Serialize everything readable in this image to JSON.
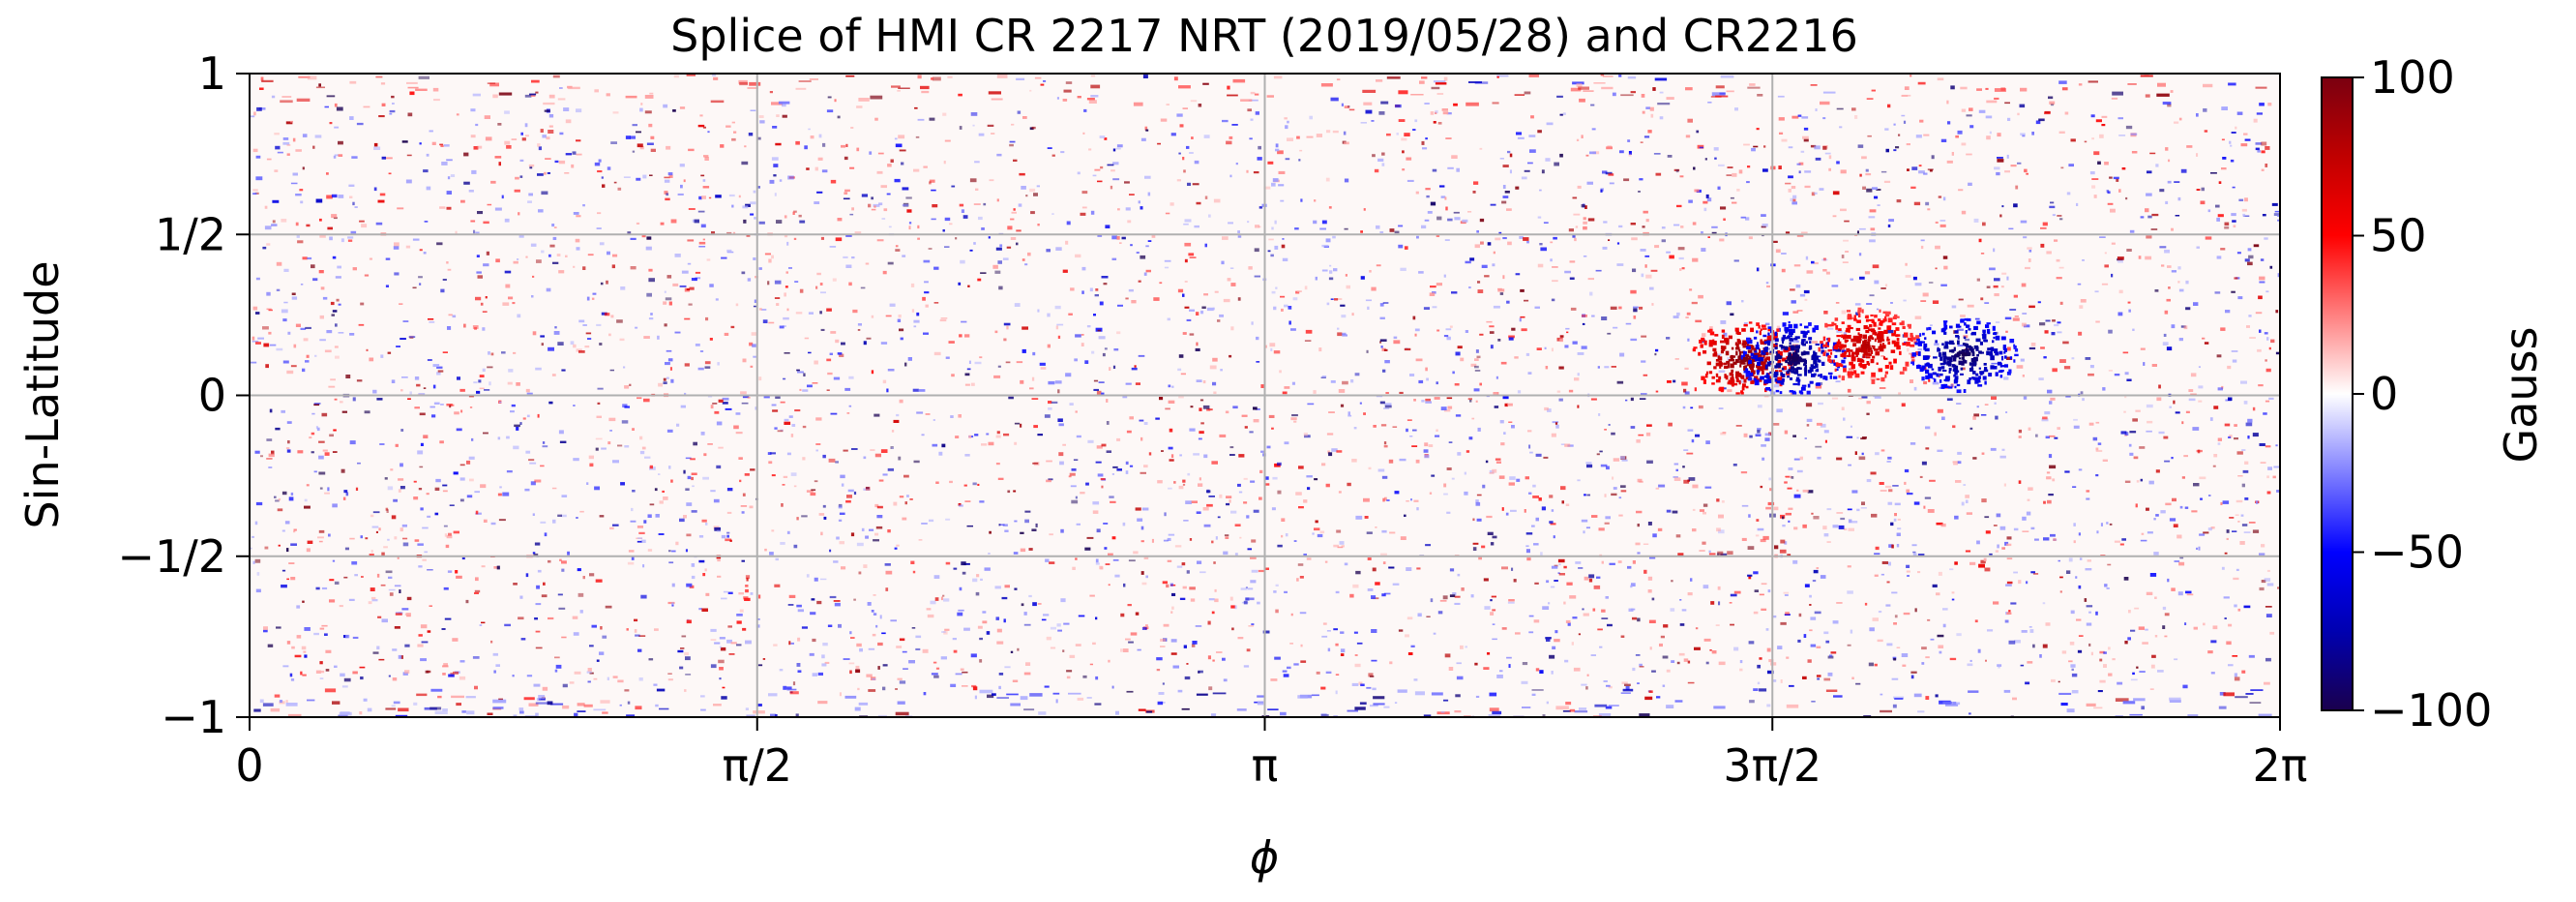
{
  "chart_data": {
    "type": "heatmap",
    "title": "Splice of HMI CR 2217 NRT (2019/05/28) and CR2216",
    "xlabel": "ϕ",
    "ylabel": "Sin-Latitude",
    "xlim": [
      0,
      6.283185
    ],
    "ylim": [
      -1,
      1
    ],
    "x_ticks": [
      {
        "value": 0,
        "label": "0"
      },
      {
        "value": 1.570796,
        "label": "π/2"
      },
      {
        "value": 3.141593,
        "label": "π"
      },
      {
        "value": 4.712389,
        "label": "3π/2"
      },
      {
        "value": 6.283185,
        "label": "2π"
      }
    ],
    "y_ticks": [
      {
        "value": 1,
        "label": "1"
      },
      {
        "value": 0.5,
        "label": "1/2"
      },
      {
        "value": 0,
        "label": "0"
      },
      {
        "value": -0.5,
        "label": "−1/2"
      },
      {
        "value": -1,
        "label": "−1"
      }
    ],
    "grid": true,
    "colorbar": {
      "label": "Gauss",
      "range": [
        -100,
        100
      ],
      "colormap": "seismic",
      "ticks": [
        {
          "value": 100,
          "label": "100"
        },
        {
          "value": 50,
          "label": "50"
        },
        {
          "value": 0,
          "label": "0"
        },
        {
          "value": -50,
          "label": "−50"
        },
        {
          "value": -100,
          "label": "−100"
        }
      ],
      "stops": [
        {
          "value": -100,
          "color": "#1a004d"
        },
        {
          "value": -75,
          "color": "#0000b0"
        },
        {
          "value": -50,
          "color": "#0000ff"
        },
        {
          "value": 0,
          "color": "#ffffff"
        },
        {
          "value": 50,
          "color": "#ff0000"
        },
        {
          "value": 75,
          "color": "#c00000"
        },
        {
          "value": 100,
          "color": "#7a0010"
        }
      ]
    },
    "active_regions": [
      {
        "phi": 4.62,
        "sin_lat": 0.12,
        "field_gauss": 100
      },
      {
        "phi": 4.77,
        "sin_lat": 0.12,
        "field_gauss": -100
      },
      {
        "phi": 5.0,
        "sin_lat": 0.16,
        "field_gauss": 80
      },
      {
        "phi": 5.3,
        "sin_lat": 0.13,
        "field_gauss": -100
      }
    ]
  }
}
